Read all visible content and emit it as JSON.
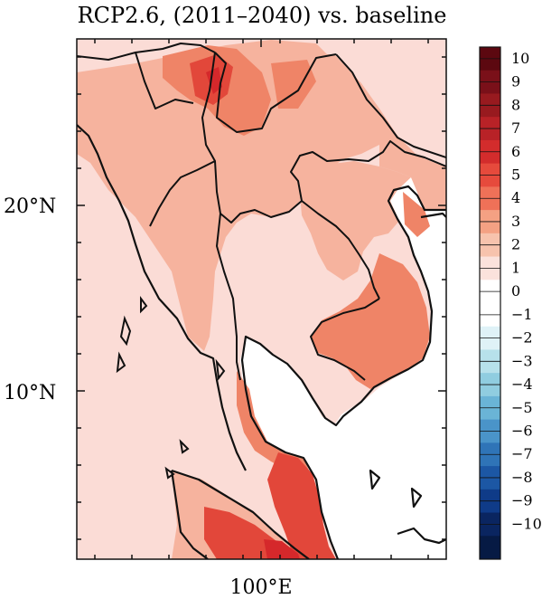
{
  "title": "RCP2.6, (2011–2040) vs. baseline",
  "axes": {
    "y_ticks": [
      {
        "label": "20°N",
        "lat": 20
      },
      {
        "label": "10°N",
        "lat": 10
      }
    ],
    "x_ticks": [
      {
        "label": "100°E",
        "lon": 100
      }
    ]
  },
  "colorbar": {
    "labels": [
      "10",
      "9",
      "8",
      "7",
      "6",
      "5",
      "4",
      "3",
      "2",
      "1",
      "0",
      "−1",
      "−2",
      "−3",
      "−4",
      "−5",
      "−6",
      "−7",
      "−8",
      "−9",
      "−10"
    ],
    "colors": [
      "#5c0810",
      "#7a1019",
      "#981a1f",
      "#b82227",
      "#d32c2c",
      "#e64a3c",
      "#ef7158",
      "#f4a183",
      "#f7c3ad",
      "#fbe2dc",
      "#ffffff",
      "#ffffff",
      "#dff2f7",
      "#b7e1eb",
      "#90cde0",
      "#6ab4d6",
      "#4a94c9",
      "#2f74b7",
      "#1c57a4",
      "#0f3b88",
      "#0a2560",
      "#061a44"
    ]
  },
  "map_colors": {
    "land_light": "#fbdcd6",
    "land_mid": "#f6b39e",
    "land_orange": "#ef8467",
    "land_red": "#e2473a",
    "land_darkred": "#d5282b",
    "ocean": "#ffffff",
    "border": "#111111"
  }
}
